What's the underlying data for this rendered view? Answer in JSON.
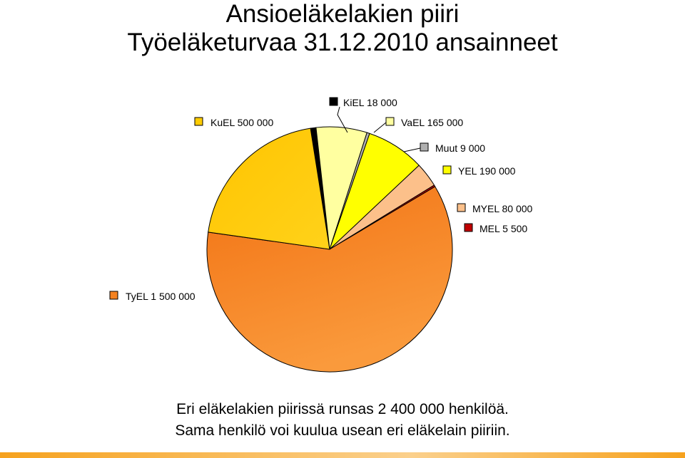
{
  "title_line1": "Ansioeläkelakien piiri",
  "title_line2": "Työeläketurvaa 31.12.2010 ansainneet",
  "caption_line1": "Eri eläkelakien piirissä runsas 2 400 000 henkilöä.",
  "caption_line2": "Sama henkilö voi kuulua usean eri eläkelain piiriin.",
  "chart_data": {
    "type": "pie",
    "slices": [
      {
        "name": "KiEL",
        "value": 18000,
        "label": "KiEL 18 000",
        "color": "#000000"
      },
      {
        "name": "VaEL",
        "value": 165000,
        "label": "VaEL 165 000",
        "color": "#ffffa0"
      },
      {
        "name": "Muut",
        "value": 9000,
        "label": "Muut 9 000",
        "color": "#b0b0b0"
      },
      {
        "name": "YEL",
        "value": 190000,
        "label": "YEL 190 000",
        "color": "#ffff00"
      },
      {
        "name": "MYEL",
        "value": 80000,
        "label": "MYEL 80 000",
        "color": "#fcc08a"
      },
      {
        "name": "MEL",
        "value": 5500,
        "label": "MEL 5 500",
        "color": "#c00000"
      },
      {
        "name": "TyEL",
        "value": 1500000,
        "label": "TyEL 1 500 000",
        "color": "#f58220"
      },
      {
        "name": "KuEL",
        "value": 500000,
        "label": "KuEL 500 000",
        "color": "#ffcc00"
      }
    ]
  }
}
